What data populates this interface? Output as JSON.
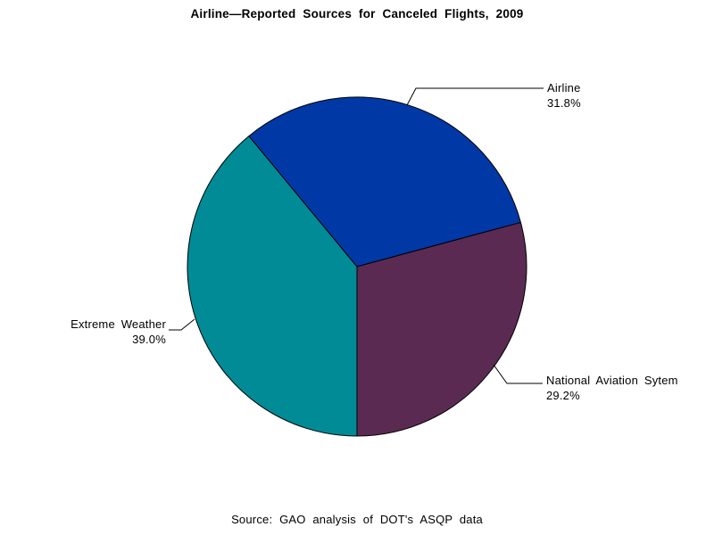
{
  "chart_data": {
    "type": "pie",
    "title": "Airline—Reported Sources for Canceled Flights, 2009",
    "source_note": "Source: GAO analysis of DOT's ASQP data",
    "start_angle_deg": 180,
    "direction": "clockwise",
    "legend": "none",
    "slices": [
      {
        "label": "Extreme Weather",
        "value": 39.0,
        "pct_label": "39.0%",
        "color": "#008b96"
      },
      {
        "label": "Airline",
        "value": 31.8,
        "pct_label": "31.8%",
        "color": "#0039a6"
      },
      {
        "label": "National Aviation Sytem",
        "value": 29.2,
        "pct_label": "29.2%",
        "color": "#5b2a52"
      }
    ]
  }
}
